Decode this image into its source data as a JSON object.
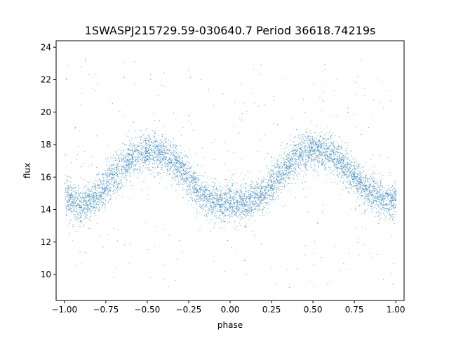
{
  "chart_data": {
    "type": "scatter",
    "title": "1SWASPJ215729.59-030640.7 Period 36618.74219s",
    "xlabel": "phase",
    "ylabel": "flux",
    "xlim": [
      -1.05,
      1.05
    ],
    "ylim": [
      8.4,
      24.4
    ],
    "xticks": [
      -1.0,
      -0.75,
      -0.5,
      -0.25,
      0.0,
      0.25,
      0.5,
      0.75,
      1.0
    ],
    "xtick_labels": [
      "−1.00",
      "−0.75",
      "−0.50",
      "−0.25",
      "0.00",
      "0.25",
      "0.50",
      "0.75",
      "1.00"
    ],
    "yticks": [
      10,
      12,
      14,
      16,
      18,
      20,
      22,
      24
    ],
    "ytick_labels": [
      "10",
      "12",
      "14",
      "16",
      "18",
      "20",
      "22",
      "24"
    ],
    "grid": false,
    "legend": "none",
    "marker_color": "#1f77b4",
    "series": [
      {
        "x": [
          -1.0,
          -0.95,
          -0.9,
          -0.85,
          -0.8,
          -0.75,
          -0.7,
          -0.65,
          -0.6,
          -0.55,
          -0.5,
          -0.45,
          -0.4,
          -0.35,
          -0.3,
          -0.25,
          -0.2,
          -0.15,
          -0.1,
          -0.05,
          0.0,
          0.05,
          0.1,
          0.15,
          0.2,
          0.25,
          0.3,
          0.35,
          0.4,
          0.45,
          0.5,
          0.55,
          0.6,
          0.65,
          0.7,
          0.75,
          0.8,
          0.85,
          0.9,
          0.95,
          1.0
        ],
        "y": [
          14.8,
          14.5,
          14.4,
          14.5,
          14.9,
          15.5,
          16.1,
          16.7,
          17.2,
          17.5,
          17.6,
          17.6,
          17.4,
          17.0,
          16.5,
          15.9,
          15.3,
          14.8,
          14.5,
          14.4,
          14.5,
          14.4,
          14.4,
          14.6,
          15.0,
          15.6,
          16.2,
          16.8,
          17.3,
          17.6,
          17.7,
          17.6,
          17.4,
          17.1,
          16.6,
          16.0,
          15.5,
          15.1,
          14.8,
          14.6,
          14.6
        ]
      }
    ]
  }
}
